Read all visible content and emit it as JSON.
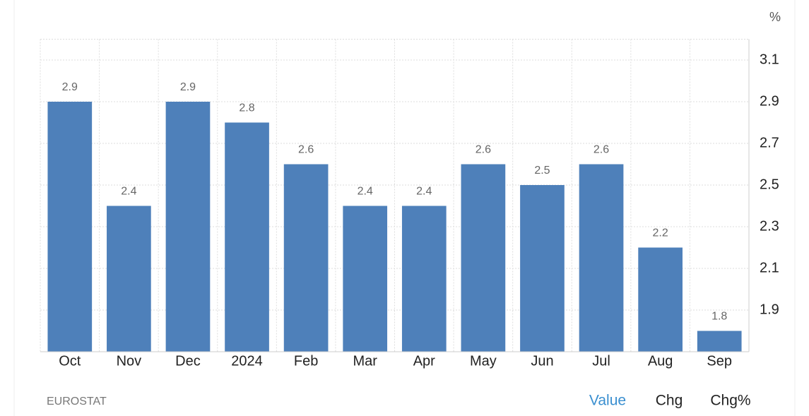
{
  "chart_data": {
    "type": "bar",
    "unit": "%",
    "categories": [
      "Oct",
      "Nov",
      "Dec",
      "2024",
      "Feb",
      "Mar",
      "Apr",
      "May",
      "Jun",
      "Jul",
      "Aug",
      "Sep"
    ],
    "values": [
      2.9,
      2.4,
      2.9,
      2.8,
      2.6,
      2.4,
      2.4,
      2.6,
      2.5,
      2.6,
      2.2,
      1.8
    ],
    "color": "#4e80ba",
    "ylim": [
      1.7,
      3.2
    ],
    "yticks": [
      1.9,
      2.1,
      2.3,
      2.5,
      2.7,
      2.9,
      3.1
    ],
    "grid": true,
    "y_axis_side": "right"
  },
  "source": "EUROSTAT",
  "buttons": [
    "Value",
    "Chg",
    "Chg%"
  ]
}
